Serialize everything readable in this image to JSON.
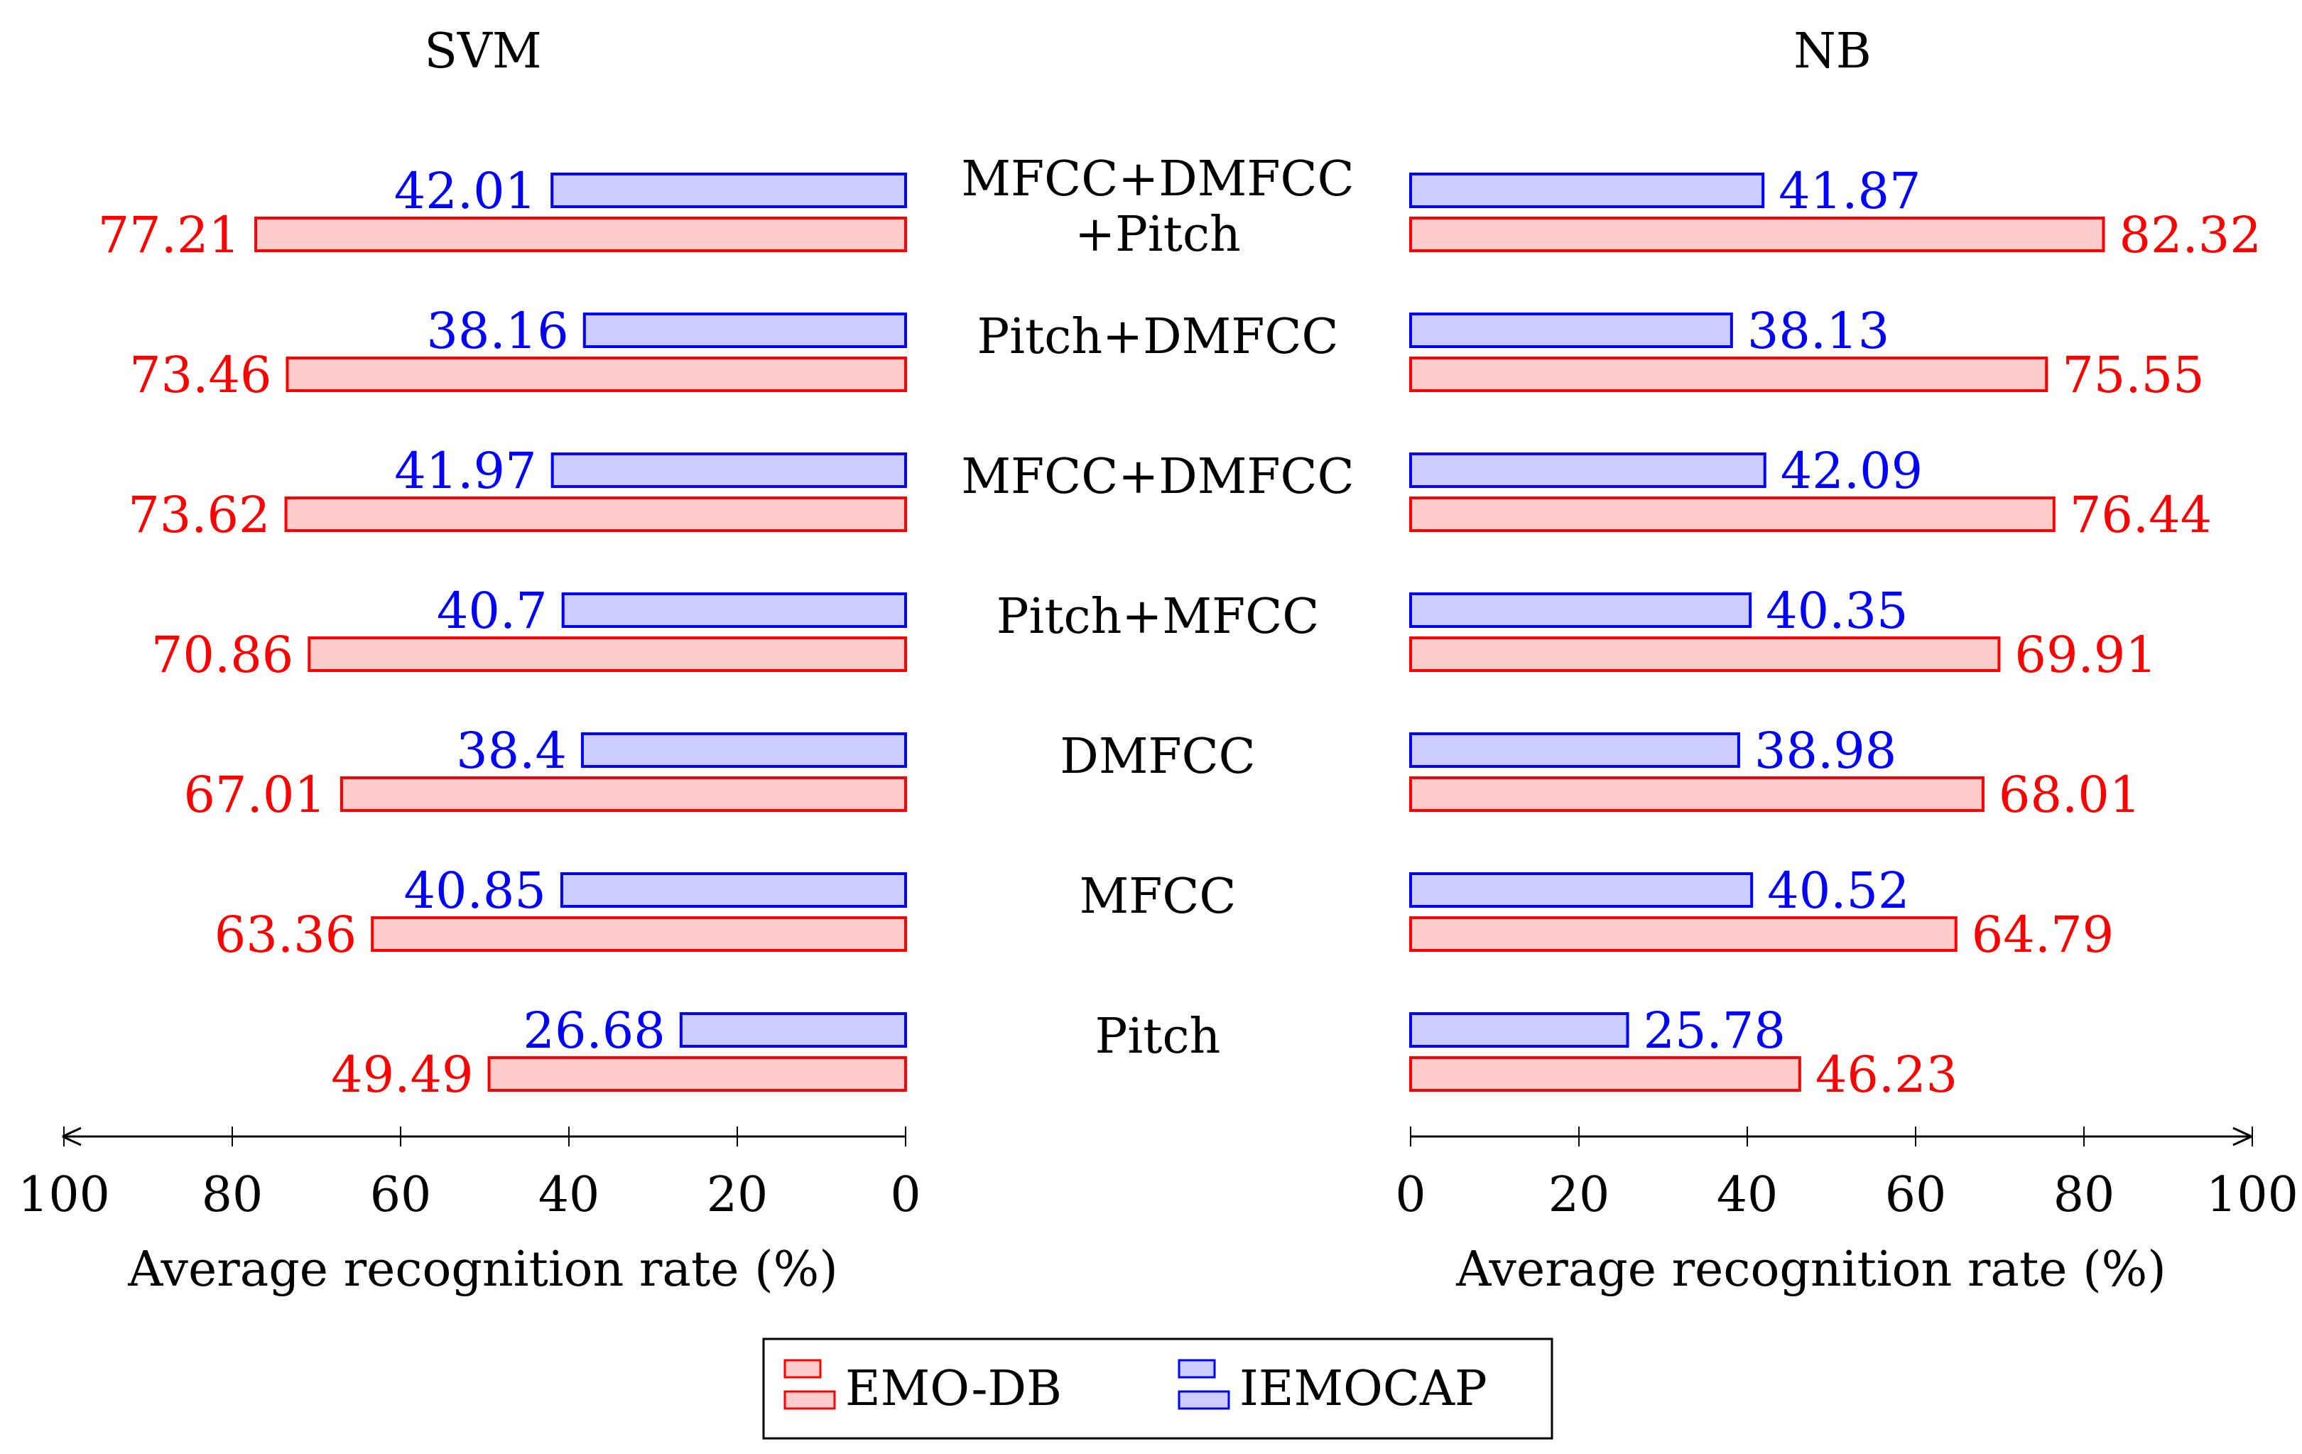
{
  "chart_data": [
    {
      "type": "bar",
      "orientation": "horizontal",
      "direction": "right-to-left",
      "title": "SVM",
      "xlabel": "Average recognition rate (%)",
      "xlim": [
        0,
        100
      ],
      "xticks": [
        100,
        80,
        60,
        40,
        20,
        0
      ],
      "categories": [
        "MFCC+DMFCC +Pitch",
        "Pitch+DMFCC",
        "MFCC+DMFCC",
        "Pitch+MFCC",
        "DMFCC",
        "MFCC",
        "Pitch"
      ],
      "series": [
        {
          "name": "EMO-DB",
          "values": [
            77.21,
            73.46,
            73.62,
            70.86,
            67.01,
            63.36,
            49.49
          ],
          "labels": [
            "77.21",
            "73.46",
            "73.62",
            "70.86",
            "67.01",
            "63.36",
            "49.49"
          ]
        },
        {
          "name": "IEMOCAP",
          "values": [
            42.01,
            38.16,
            41.97,
            40.7,
            38.4,
            40.85,
            26.68
          ],
          "labels": [
            "42.01",
            "38.16",
            "41.97",
            "40.7",
            "38.4",
            "40.85",
            "26.68"
          ]
        }
      ]
    },
    {
      "type": "bar",
      "orientation": "horizontal",
      "direction": "left-to-right",
      "title": "NB",
      "xlabel": "Average recognition rate (%)",
      "xlim": [
        0,
        100
      ],
      "xticks": [
        0,
        20,
        40,
        60,
        80,
        100
      ],
      "categories": [
        "MFCC+DMFCC +Pitch",
        "Pitch+DMFCC",
        "MFCC+DMFCC",
        "Pitch+MFCC",
        "DMFCC",
        "MFCC",
        "Pitch"
      ],
      "series": [
        {
          "name": "EMO-DB",
          "values": [
            82.32,
            75.55,
            76.44,
            69.91,
            68.01,
            64.79,
            46.23
          ],
          "labels": [
            "82.32",
            "75.55",
            "76.44",
            "69.91",
            "68.01",
            "64.79",
            "46.23"
          ]
        },
        {
          "name": "IEMOCAP",
          "values": [
            41.87,
            38.13,
            42.09,
            40.35,
            38.98,
            40.52,
            25.78
          ],
          "labels": [
            "41.87",
            "38.13",
            "42.09",
            "40.35",
            "38.98",
            "40.52",
            "25.78"
          ]
        }
      ]
    }
  ],
  "category_labels": [
    [
      "MFCC+DMFCC",
      "+Pitch"
    ],
    [
      "Pitch+DMFCC"
    ],
    [
      "MFCC+DMFCC"
    ],
    [
      "Pitch+MFCC"
    ],
    [
      "DMFCC"
    ],
    [
      "MFCC"
    ],
    [
      "Pitch"
    ]
  ],
  "legend": {
    "placement": "bottom-center",
    "items": [
      {
        "name": "EMO-DB",
        "stroke": "#ff0000",
        "fill": "#ffcccc"
      },
      {
        "name": "IEMOCAP",
        "stroke": "#0000ff",
        "fill": "#ccccff"
      }
    ]
  },
  "colors": {
    "emo_stroke": "#ff0000",
    "emo_fill": "#ffcccc",
    "iem_stroke": "#0000ff",
    "iem_fill": "#ccccff",
    "axis": "#000000"
  }
}
